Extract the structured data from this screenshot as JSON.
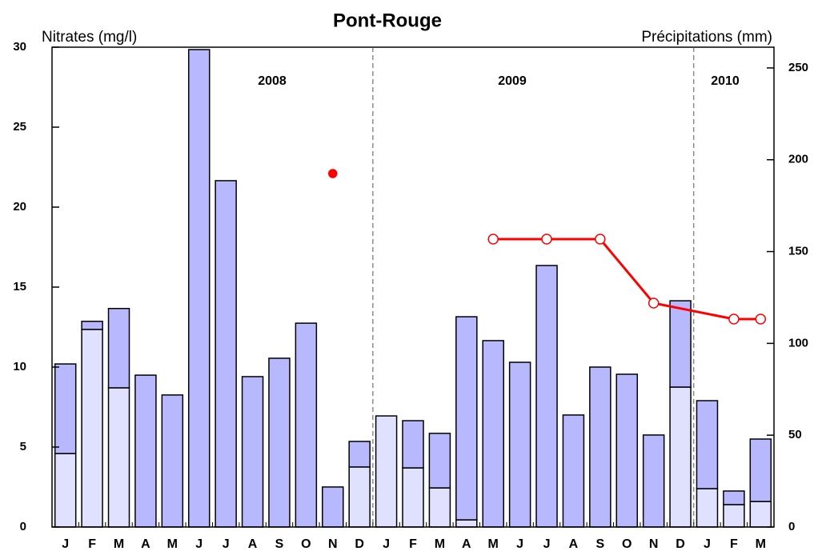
{
  "chart_data": {
    "type": "bar",
    "title": "Pont-Rouge",
    "y_label": "Nitrates (mg/l)",
    "y2_label": "Précipitations (mm)",
    "categories": [
      "J",
      "F",
      "M",
      "A",
      "M",
      "J",
      "J",
      "A",
      "S",
      "O",
      "N",
      "D",
      "J",
      "F",
      "M",
      "A",
      "M",
      "J",
      "J",
      "A",
      "S",
      "O",
      "N",
      "D",
      "J",
      "F",
      "M"
    ],
    "annotations": [
      "2008",
      "2009",
      "2010"
    ],
    "ylim": [
      0,
      30
    ],
    "yticks": [
      0,
      5,
      10,
      15,
      20,
      25,
      30
    ],
    "y2lim": [
      0,
      261.3
    ],
    "y2ticks": [
      0,
      50,
      100,
      150,
      200,
      250
    ],
    "connect_gaps": true,
    "series": [
      {
        "type": "bar",
        "axis": "y2",
        "color": "#e0e0ff",
        "values": [
          40,
          107.6,
          75.8,
          0,
          0,
          0,
          0,
          0,
          0,
          0,
          0,
          32.7,
          60.5,
          32.2,
          21.3,
          3.9,
          0,
          0,
          0,
          0,
          0,
          0,
          0,
          76.2,
          20.9,
          12.2,
          13.9
        ]
      },
      {
        "type": "bar",
        "axis": "y2",
        "color": "#b8b8ff",
        "values": [
          48.8,
          4.4,
          43.2,
          82.7,
          71.9,
          260,
          188.6,
          81.9,
          91.9,
          111,
          21.8,
          13.9,
          0,
          25.7,
          29.7,
          110.6,
          101.5,
          89.7,
          142.4,
          61,
          87.1,
          83.2,
          50.1,
          47,
          47.9,
          7.4,
          34
        ]
      },
      {
        "type": "line",
        "color": "#ff0000",
        "marker": "open",
        "values": [
          null,
          null,
          null,
          null,
          null,
          null,
          null,
          null,
          null,
          null,
          null,
          null,
          null,
          null,
          null,
          null,
          18,
          null,
          18,
          null,
          18,
          null,
          14,
          null,
          null,
          13,
          13
        ]
      },
      {
        "type": "scatter",
        "color": "#ff0000",
        "marker": "filled",
        "values": [
          null,
          null,
          null,
          null,
          null,
          null,
          null,
          null,
          null,
          null,
          22.1,
          null,
          null,
          null,
          null,
          null,
          null,
          null,
          null,
          null,
          null,
          null,
          null,
          null,
          null,
          null,
          null
        ]
      }
    ]
  }
}
